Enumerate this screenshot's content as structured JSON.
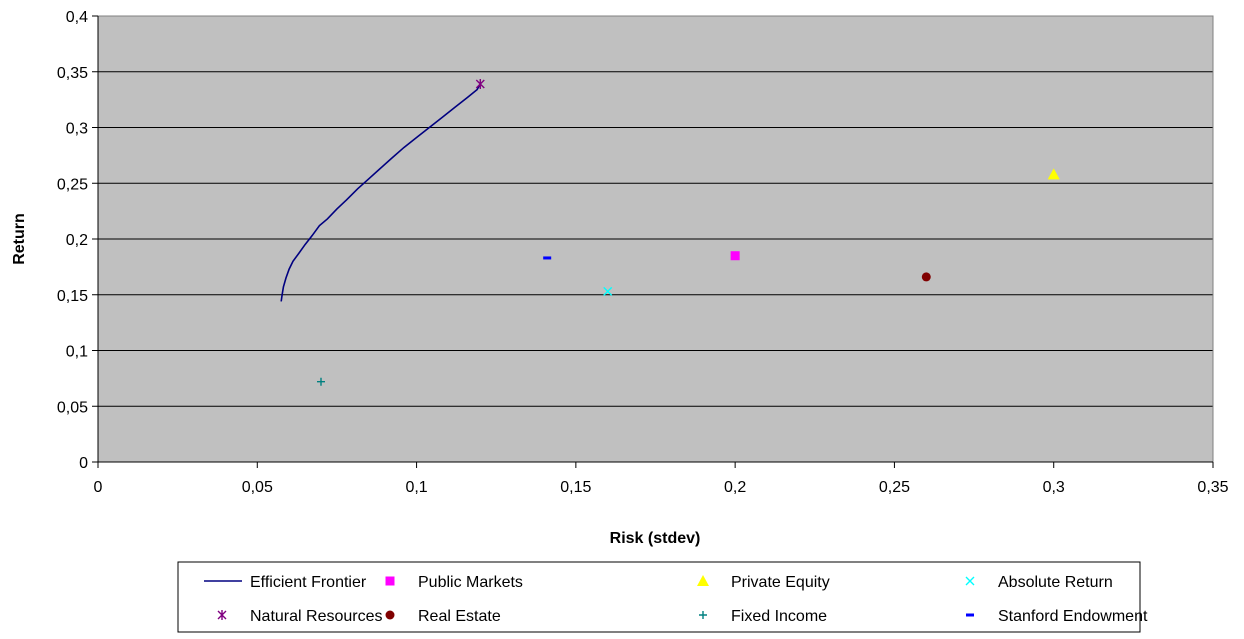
{
  "chart_data": {
    "type": "scatter",
    "title": "",
    "xlabel": "Risk (stdev)",
    "ylabel": "Return",
    "xlim": [
      0,
      0.35
    ],
    "ylim": [
      0,
      0.4
    ],
    "x_ticks": [
      {
        "value": 0,
        "label": "0"
      },
      {
        "value": 0.05,
        "label": "0,05"
      },
      {
        "value": 0.1,
        "label": "0,1"
      },
      {
        "value": 0.15,
        "label": "0,15"
      },
      {
        "value": 0.2,
        "label": "0,2"
      },
      {
        "value": 0.25,
        "label": "0,25"
      },
      {
        "value": 0.3,
        "label": "0,3"
      },
      {
        "value": 0.35,
        "label": "0,35"
      }
    ],
    "y_ticks": [
      {
        "value": 0,
        "label": "0"
      },
      {
        "value": 0.05,
        "label": "0,05"
      },
      {
        "value": 0.1,
        "label": "0,1"
      },
      {
        "value": 0.15,
        "label": "0,15"
      },
      {
        "value": 0.2,
        "label": "0,2"
      },
      {
        "value": 0.25,
        "label": "0,25"
      },
      {
        "value": 0.3,
        "label": "0,3"
      },
      {
        "value": 0.35,
        "label": "0,35"
      },
      {
        "value": 0.4,
        "label": "0,4"
      }
    ],
    "grid": "horizontal",
    "plot_background": "#c0c0c0",
    "legend_position": "bottom",
    "series": [
      {
        "name": "Efficient Frontier",
        "kind": "line",
        "color": "#000080",
        "points": [
          [
            0.0575,
            0.144
          ],
          [
            0.0578,
            0.15
          ],
          [
            0.0582,
            0.157
          ],
          [
            0.059,
            0.165
          ],
          [
            0.06,
            0.173
          ],
          [
            0.0612,
            0.18
          ],
          [
            0.063,
            0.187
          ],
          [
            0.065,
            0.195
          ],
          [
            0.0672,
            0.203
          ],
          [
            0.0695,
            0.212
          ],
          [
            0.072,
            0.218
          ],
          [
            0.075,
            0.227
          ],
          [
            0.078,
            0.235
          ],
          [
            0.0815,
            0.245
          ],
          [
            0.085,
            0.254
          ],
          [
            0.0885,
            0.263
          ],
          [
            0.092,
            0.272
          ],
          [
            0.096,
            0.282
          ],
          [
            0.1,
            0.291
          ],
          [
            0.104,
            0.3
          ],
          [
            0.108,
            0.309
          ],
          [
            0.112,
            0.318
          ],
          [
            0.116,
            0.327
          ],
          [
            0.119,
            0.334
          ],
          [
            0.12,
            0.339
          ]
        ]
      },
      {
        "name": "Public Markets",
        "kind": "point",
        "marker": "square",
        "color": "#ff00ff",
        "points": [
          [
            0.2,
            0.185
          ]
        ]
      },
      {
        "name": "Private Equity",
        "kind": "point",
        "marker": "triangle",
        "color": "#ffff00",
        "points": [
          [
            0.3,
            0.258
          ]
        ]
      },
      {
        "name": "Absolute Return",
        "kind": "point",
        "marker": "x",
        "color": "#00ffff",
        "points": [
          [
            0.16,
            0.153
          ]
        ]
      },
      {
        "name": "Natural Resources",
        "kind": "point",
        "marker": "star",
        "color": "#800080",
        "points": [
          [
            0.12,
            0.339
          ]
        ]
      },
      {
        "name": "Real Estate",
        "kind": "point",
        "marker": "circle",
        "color": "#800000",
        "points": [
          [
            0.26,
            0.166
          ]
        ]
      },
      {
        "name": "Fixed Income",
        "kind": "point",
        "marker": "plus",
        "color": "#008080",
        "points": [
          [
            0.07,
            0.072
          ]
        ]
      },
      {
        "name": "Stanford Endowment",
        "kind": "point",
        "marker": "dash",
        "color": "#0000ff",
        "points": [
          [
            0.141,
            0.183
          ]
        ]
      }
    ]
  }
}
